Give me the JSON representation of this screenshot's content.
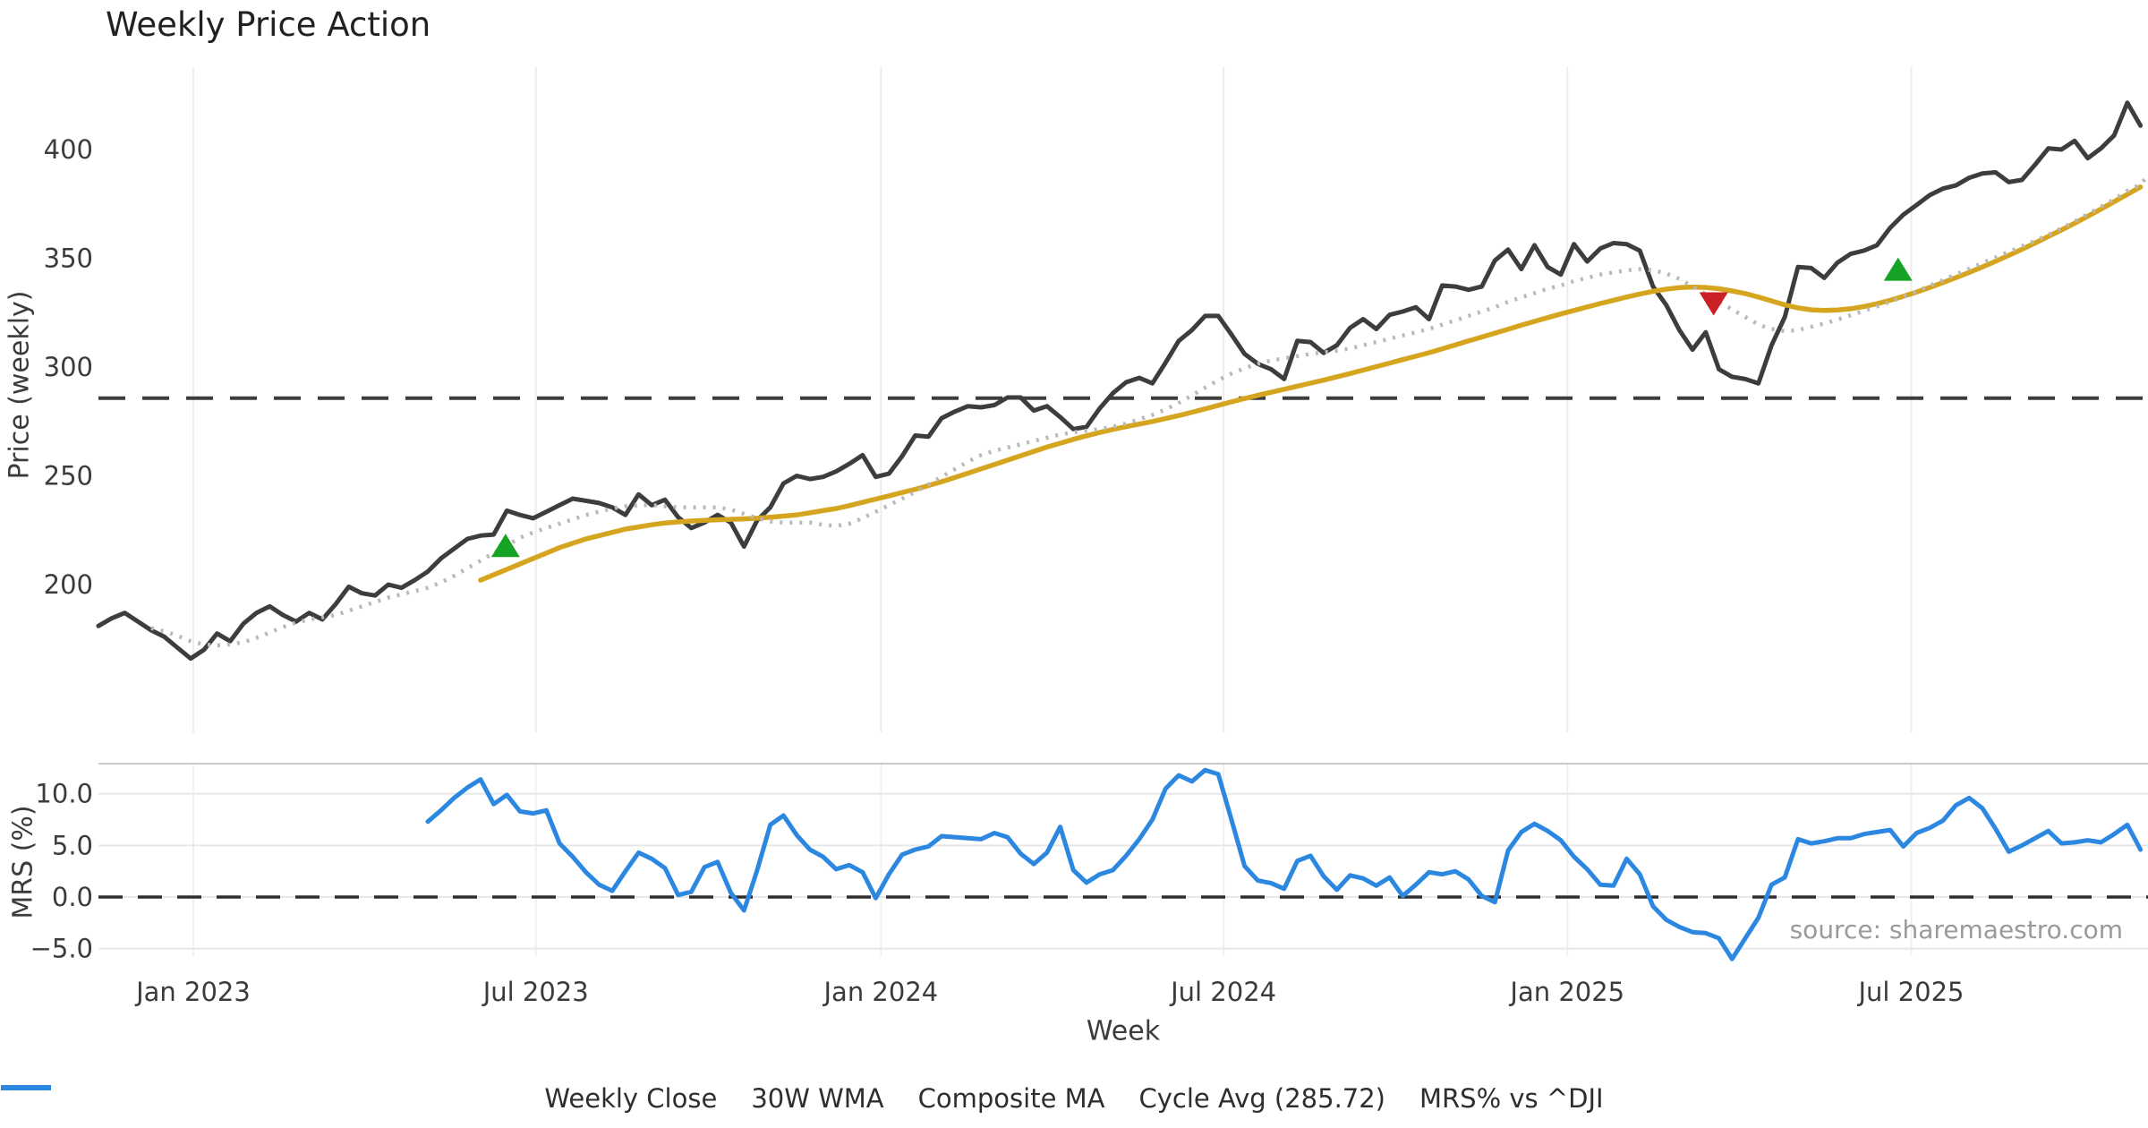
{
  "title": "Weekly Price Action",
  "source_note": "source: sharemaestro.com",
  "axes": {
    "price_axis_label": "Price (weekly)",
    "mrs_axis_label": "MRS (%)",
    "x_axis_label": "Week",
    "price_ticks": [
      {
        "v": 400,
        "label": "400"
      },
      {
        "v": 350,
        "label": "350"
      },
      {
        "v": 300,
        "label": "300"
      },
      {
        "v": 250,
        "label": "250"
      },
      {
        "v": 200,
        "label": "200"
      }
    ],
    "mrs_ticks": [
      {
        "v": 10,
        "label": "10.0"
      },
      {
        "v": 5,
        "label": "5.0"
      },
      {
        "v": 0,
        "label": "0.0"
      },
      {
        "v": -5,
        "label": "−5.0"
      }
    ],
    "x_ticks": [
      {
        "week": 7.2,
        "label": "Jan 2023"
      },
      {
        "week": 33.2,
        "label": "Jul 2023"
      },
      {
        "week": 59.4,
        "label": "Jan 2024"
      },
      {
        "week": 85.4,
        "label": "Jul 2024"
      },
      {
        "week": 111.5,
        "label": "Jan 2025"
      },
      {
        "week": 137.6,
        "label": "Jul 2025"
      }
    ]
  },
  "legend": [
    {
      "label": "Weekly Close",
      "color": "#3d3d3d",
      "style": "solid"
    },
    {
      "label": "30W WMA",
      "color": "#d6a51f",
      "style": "solid"
    },
    {
      "label": "Composite MA",
      "color": "#b9b9b9",
      "style": "dotted"
    },
    {
      "label": "Cycle Avg (285.72)",
      "color": "#3d3d3d",
      "style": "dashed"
    },
    {
      "label": "MRS% vs ^DJI",
      "color": "#2b87e0",
      "style": "solid"
    }
  ],
  "colors": {
    "close": "#3d3d3d",
    "wma": "#d6a51f",
    "composite": "#b9b9b9",
    "cycle": "#3d3d3d",
    "mrs": "#2b87e0",
    "buy": "#16a224",
    "sell": "#cb2025",
    "grid": "#ececec",
    "spine": "#c9c9c9"
  },
  "chart_data": [
    {
      "type": "line",
      "panel": "price",
      "title": "Weekly Price Action",
      "xlabel": "Week",
      "ylabel": "Price (weekly)",
      "x_interval": "weekly",
      "start_date": "2022-11-11",
      "end_date": "2025-10-31",
      "ylim": [
        133,
        438
      ],
      "grid": "vertical-only",
      "cycle_avg": 285.72,
      "series": [
        {
          "name": "Weekly Close",
          "start_index": 0,
          "values": [
            181,
            184.5,
            187,
            183,
            179,
            176,
            171,
            166,
            170,
            177.5,
            174,
            182,
            187,
            190,
            186,
            183,
            187,
            184,
            191,
            199,
            196,
            195,
            200,
            198.5,
            202,
            206,
            212,
            216.5,
            221,
            222.5,
            223,
            234,
            232,
            230.5,
            233.5,
            236.5,
            239.5,
            238.5,
            237.5,
            235.5,
            232,
            241.5,
            236.5,
            239,
            231,
            226,
            228.5,
            232,
            228.5,
            217.5,
            229.5,
            235.5,
            246.5,
            250,
            248.5,
            249.5,
            252,
            255.5,
            259.5,
            249.5,
            251,
            259,
            268.5,
            268,
            276.5,
            279.5,
            282,
            281.5,
            282.5,
            286,
            286,
            280,
            282,
            277,
            271.5,
            272.5,
            281,
            288,
            293,
            295,
            292.5,
            302,
            312,
            317,
            323.5,
            323.5,
            315,
            306,
            301.5,
            299,
            294.5,
            312,
            311.5,
            306.5,
            310,
            318,
            322,
            317.5,
            324,
            325.5,
            327.5,
            322,
            337.5,
            337,
            335.5,
            337,
            349,
            354,
            345,
            356,
            346,
            342.5,
            356.5,
            348.5,
            354.5,
            357,
            356.5,
            353.5,
            337,
            328.5,
            317,
            308,
            316,
            299,
            295.5,
            294.5,
            292.5,
            310,
            323,
            346,
            345.5,
            341,
            348,
            352,
            353.5,
            356,
            364,
            370,
            374.5,
            379,
            382,
            383.5,
            387,
            389,
            389.5,
            385,
            386,
            393,
            400.5,
            400,
            404,
            396,
            400.5,
            406.5,
            421.5,
            411
          ]
        },
        {
          "name": "30W WMA",
          "start_index": 29,
          "values": [
            202,
            204.5,
            207,
            209.5,
            212,
            214.5,
            217,
            219,
            221,
            222.5,
            224,
            225.5,
            226.5,
            227.5,
            228.3,
            228.8,
            229.2,
            229.5,
            229.8,
            230,
            230.2,
            230.5,
            231,
            231.5,
            232,
            233,
            234,
            235,
            236.3,
            237.8,
            239.3,
            240.8,
            242.3,
            243.8,
            245.5,
            247.3,
            249.2,
            251.2,
            253.2,
            255.2,
            257.2,
            259.2,
            261.2,
            263.2,
            265,
            266.8,
            268.4,
            269.9,
            271.3,
            272.6,
            273.8,
            275,
            276.3,
            277.7,
            279.2,
            280.8,
            282.4,
            284,
            285.5,
            287,
            288.4,
            289.8,
            291.2,
            292.6,
            294,
            295.5,
            297,
            298.6,
            300.2,
            301.8,
            303.4,
            305,
            306.6,
            308.4,
            310.2,
            312,
            313.8,
            315.6,
            317.4,
            319.2,
            321,
            322.7,
            324.4,
            326,
            327.6,
            329.2,
            330.7,
            332.2,
            333.6,
            334.8,
            335.8,
            336.5,
            336.8,
            336.6,
            336,
            335,
            333.8,
            332.2,
            330.4,
            328.6,
            327.2,
            326.3,
            326,
            326.2,
            326.8,
            327.8,
            329.1,
            330.7,
            332.5,
            334.5,
            336.6,
            338.8,
            341.1,
            343.5,
            346,
            348.6,
            351.3,
            354.1,
            357,
            360,
            363,
            366.1,
            369.3,
            372.6,
            376,
            379.4,
            382.8
          ]
        },
        {
          "name": "Composite MA",
          "start_index": 4,
          "values": [
            180,
            178.5,
            176.5,
            174,
            172.5,
            172,
            172.5,
            173.5,
            175.5,
            178,
            180.5,
            182.5,
            184,
            185,
            186,
            188,
            190,
            192,
            194,
            195.5,
            197,
            198.5,
            201,
            204,
            207.5,
            211,
            214.5,
            218,
            221.5,
            224,
            226,
            228,
            230,
            232,
            233.5,
            235,
            236,
            236.5,
            236.5,
            236,
            235.5,
            235.5,
            235.5,
            235.5,
            234.5,
            232.5,
            230.5,
            229,
            228.5,
            228.5,
            228.5,
            227.5,
            227,
            228,
            230.5,
            233.5,
            236.5,
            239.5,
            242.5,
            246,
            249.5,
            253,
            256.5,
            259.5,
            261.5,
            263,
            264.5,
            266,
            267.5,
            269,
            270,
            270.8,
            271.5,
            272.5,
            274,
            276,
            278,
            280.5,
            283.5,
            287,
            290.5,
            294,
            297,
            299.5,
            301.5,
            303,
            304,
            305,
            306,
            306.8,
            307.5,
            308.5,
            310,
            311.5,
            313,
            314.5,
            316,
            317.5,
            319.5,
            321.5,
            323.5,
            325.5,
            327.5,
            330,
            332,
            334,
            336,
            337.5,
            339.5,
            341,
            342.5,
            343.5,
            344.5,
            345,
            344.5,
            343,
            340.5,
            337,
            333.5,
            330,
            326.5,
            323,
            319.5,
            317.5,
            316.5,
            317,
            318.5,
            320,
            321.8,
            323.8,
            325.8,
            327.8,
            330,
            332.3,
            334.8,
            337.4,
            340,
            342.6,
            345.2,
            347.8,
            350.4,
            353,
            355.5,
            358,
            360.8,
            363.8,
            367,
            370.3,
            373.7,
            377.2,
            381,
            384,
            391
          ]
        }
      ],
      "markers": [
        {
          "type": "buy",
          "week": 30.9,
          "value": 218
        },
        {
          "type": "sell",
          "week": 122.6,
          "value": 329
        },
        {
          "type": "buy",
          "week": 136.6,
          "value": 345
        }
      ]
    },
    {
      "type": "line",
      "panel": "mrs",
      "ylabel": "MRS (%)",
      "x_interval": "weekly",
      "start_date": "2022-11-11",
      "zero_line": 0.0,
      "ylim": [
        -5.7,
        12.9
      ],
      "series": [
        {
          "name": "MRS% vs ^DJI",
          "start_index": 25,
          "values": [
            7.3,
            8.4,
            9.6,
            10.6,
            11.4,
            9.0,
            9.9,
            8.3,
            8.1,
            8.4,
            5.2,
            3.9,
            2.4,
            1.2,
            0.6,
            2.5,
            4.3,
            3.7,
            2.8,
            0.2,
            0.5,
            2.9,
            3.4,
            0.4,
            -1.3,
            2.6,
            7.0,
            7.9,
            6.0,
            4.6,
            3.9,
            2.7,
            3.1,
            2.4,
            -0.1,
            2.2,
            4.1,
            4.6,
            4.9,
            5.9,
            5.8,
            5.7,
            5.6,
            6.2,
            5.8,
            4.2,
            3.2,
            4.3,
            6.8,
            2.6,
            1.4,
            2.2,
            2.6,
            4.0,
            5.6,
            7.5,
            10.5,
            11.8,
            11.2,
            12.3,
            11.9,
            7.5,
            3.0,
            1.6,
            1.35,
            0.8,
            3.5,
            4.0,
            2.0,
            0.7,
            2.1,
            1.8,
            1.1,
            1.9,
            0.1,
            1.2,
            2.4,
            2.2,
            2.5,
            1.7,
            0.1,
            -0.5,
            4.5,
            6.3,
            7.1,
            6.4,
            5.5,
            3.9,
            2.7,
            1.2,
            1.1,
            3.7,
            2.2,
            -0.9,
            -2.2,
            -2.9,
            -3.4,
            -3.5,
            -4.0,
            -6.0,
            -4.0,
            -2.0,
            1.2,
            1.9,
            5.6,
            5.2,
            5.4,
            5.7,
            5.7,
            6.1,
            6.3,
            6.5,
            4.9,
            6.2,
            6.7,
            7.4,
            8.9,
            9.6,
            8.6,
            6.6,
            4.4,
            5.0,
            5.7,
            6.4,
            5.2,
            5.3,
            5.5,
            5.3,
            6.1,
            7.0,
            4.6
          ]
        }
      ]
    }
  ]
}
